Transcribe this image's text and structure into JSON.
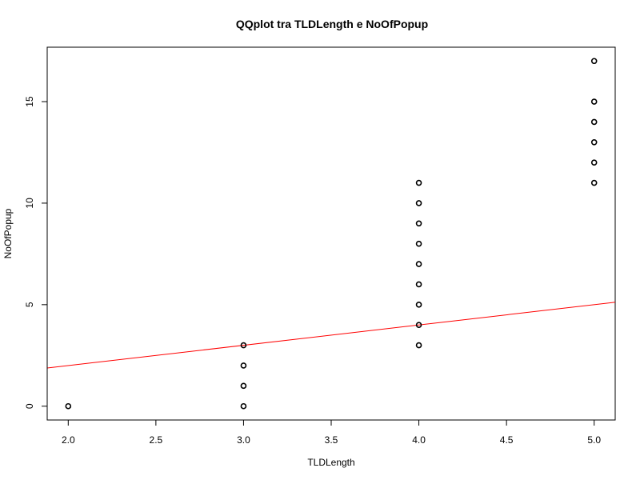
{
  "chart_data": {
    "type": "scatter",
    "title": "QQplot tra TLDLength e NoOfPopup",
    "xlabel": "TLDLength",
    "ylabel": "NoOfPopup",
    "xlim": [
      1.88,
      5.12
    ],
    "ylim": [
      -0.68,
      17.68
    ],
    "x_ticks": [
      2.0,
      2.5,
      3.0,
      3.5,
      4.0,
      4.5,
      5.0
    ],
    "x_tick_labels": [
      "2.0",
      "2.5",
      "3.0",
      "3.5",
      "4.0",
      "4.5",
      "5.0"
    ],
    "y_ticks": [
      0,
      5,
      10,
      15
    ],
    "y_tick_labels": [
      "0",
      "5",
      "10",
      "15"
    ],
    "grid": false,
    "points": [
      [
        2,
        0
      ],
      [
        3,
        0
      ],
      [
        3,
        1
      ],
      [
        3,
        2
      ],
      [
        3,
        3
      ],
      [
        4,
        3
      ],
      [
        4,
        4
      ],
      [
        4,
        5
      ],
      [
        4,
        6
      ],
      [
        4,
        7
      ],
      [
        4,
        8
      ],
      [
        4,
        9
      ],
      [
        4,
        10
      ],
      [
        4,
        11
      ],
      [
        5,
        11
      ],
      [
        5,
        12
      ],
      [
        5,
        13
      ],
      [
        5,
        14
      ],
      [
        5,
        15
      ],
      [
        5,
        17
      ]
    ],
    "reference_line": {
      "slope": 1,
      "intercept": 0,
      "color": "#ff0000"
    },
    "point_color": "#000000"
  }
}
